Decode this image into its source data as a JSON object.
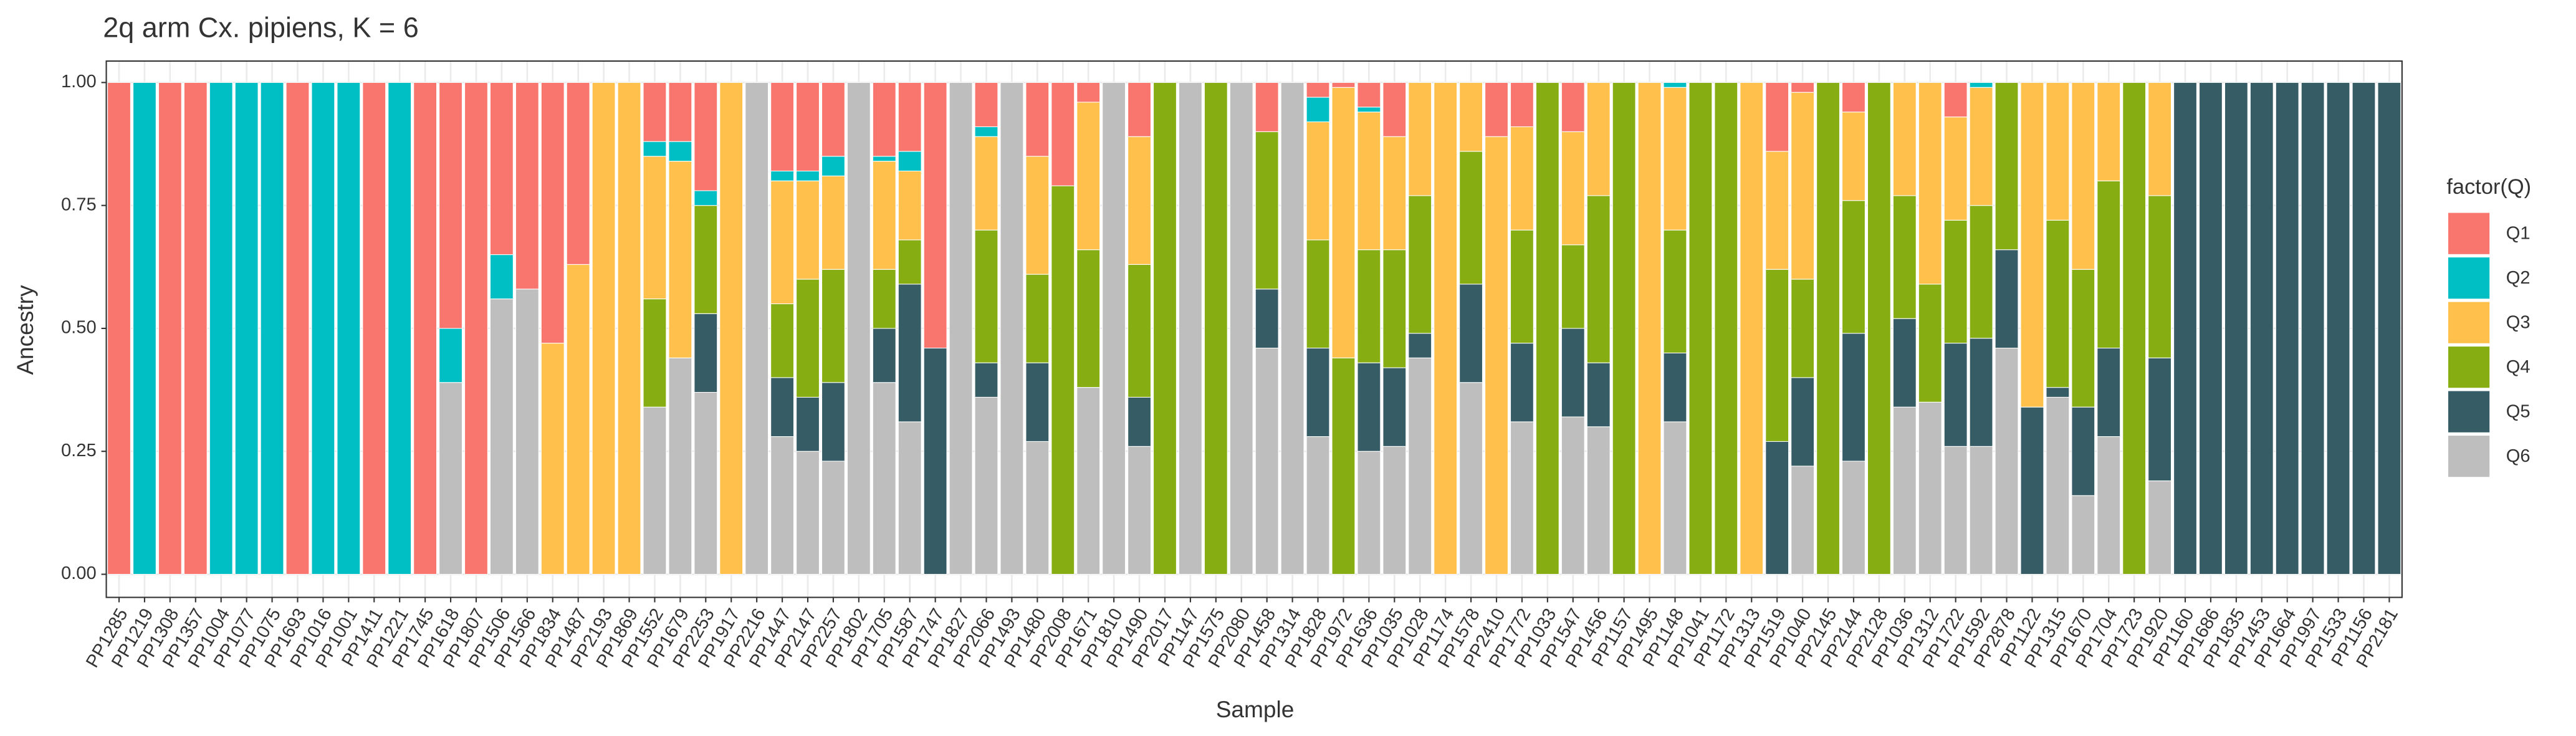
{
  "chart_data": {
    "type": "stacked_bar",
    "title": "2q arm Cx. pipiens, K = 6",
    "x_label": "Sample",
    "y_label": "Ancestry",
    "legend_title": "factor(Q)",
    "legend_position": "right",
    "grid": true,
    "categories": [
      "PP1285",
      "PP1219",
      "PP1308",
      "PP1357",
      "PP1004",
      "PP1077",
      "PP1075",
      "PP1693",
      "PP1016",
      "PP1001",
      "PP1411",
      "PP1221",
      "PP1745",
      "PP1618",
      "PP1807",
      "PP1506",
      "PP1566",
      "PP1834",
      "PP1487",
      "PP2193",
      "PP1869",
      "PP1552",
      "PP1679",
      "PP2253",
      "PP1917",
      "PP2216",
      "PP1447",
      "PP2147",
      "PP2257",
      "PP1802",
      "PP1705",
      "PP1587",
      "PP1747",
      "PP1827",
      "PP2066",
      "PP1493",
      "PP1480",
      "PP2008",
      "PP1671",
      "PP1810",
      "PP1490",
      "PP2017",
      "PP1147",
      "PP1575",
      "PP2080",
      "PP1458",
      "PP1314",
      "PP1828",
      "PP1972",
      "PP1636",
      "PP1035",
      "PP1028",
      "PP1174",
      "PP1578",
      "PP2410",
      "PP1772",
      "PP1033",
      "PP1547",
      "PP1456",
      "PP1157",
      "PP1495",
      "PP1148",
      "PP1041",
      "PP1172",
      "PP1313",
      "PP1519",
      "PP1040",
      "PP2145",
      "PP2144",
      "PP2128",
      "PP1036",
      "PP1312",
      "PP1722",
      "PP1592",
      "PP2878",
      "PP1122",
      "PP1315",
      "PP1670",
      "PP1704",
      "PP1723",
      "PP1920",
      "PP1160",
      "PP1686",
      "PP1835",
      "PP1453",
      "PP1664",
      "PP1997",
      "PP1533",
      "PP1156",
      "PP2181"
    ],
    "ylim": [
      0,
      1
    ],
    "yticks": [
      {
        "value": 0,
        "label": "0.00"
      },
      {
        "value": 0.25,
        "label": "0.25"
      },
      {
        "value": 0.5,
        "label": "0.50"
      },
      {
        "value": 0.75,
        "label": "0.75"
      },
      {
        "value": 1,
        "label": "1.00"
      }
    ],
    "series": [
      {
        "name": "Q1",
        "color": "#F8766D",
        "values": [
          1,
          0,
          1,
          1,
          0,
          0,
          0,
          1,
          0,
          0,
          1,
          0,
          1,
          0.5,
          1,
          0.35,
          0.42,
          0.53,
          0.37,
          0,
          0,
          0.12,
          0.12,
          0.22,
          0,
          0,
          0.18,
          0.18,
          0.15,
          0,
          0.15,
          0.14,
          0.54,
          0,
          0.09,
          0,
          0.15,
          0.21,
          0.04,
          0,
          0.11,
          0,
          0,
          0,
          0,
          0.1,
          0,
          0.03,
          0.01,
          0.05,
          0.11,
          0,
          0,
          0,
          0.11,
          0.09,
          0,
          0.1,
          0,
          0,
          0,
          0,
          0,
          0,
          0,
          0.14,
          0.02,
          0,
          0.06,
          0,
          0,
          0,
          0.07,
          0,
          0,
          0,
          0,
          0,
          0,
          0,
          0,
          0,
          0,
          0,
          0,
          0,
          0,
          0,
          0,
          0
        ]
      },
      {
        "name": "Q2",
        "color": "#00BFC4",
        "values": [
          0,
          1,
          0,
          0,
          1,
          1,
          1,
          0,
          1,
          1,
          0,
          1,
          0,
          0.11,
          0,
          0.09,
          0,
          0,
          0,
          0,
          0,
          0.03,
          0.04,
          0.03,
          0,
          0,
          0.02,
          0.02,
          0.04,
          0,
          0.01,
          0.04,
          0,
          0,
          0.02,
          0,
          0,
          0,
          0,
          0,
          0,
          0,
          0,
          0,
          0,
          0,
          0,
          0.05,
          0,
          0.01,
          0,
          0,
          0,
          0,
          0,
          0,
          0,
          0,
          0,
          0,
          0,
          0.01,
          0,
          0,
          0,
          0,
          0,
          0,
          0,
          0,
          0,
          0,
          0,
          0.01,
          0,
          0,
          0,
          0,
          0,
          0,
          0,
          0,
          0,
          0,
          0,
          0,
          0,
          0,
          0,
          0
        ]
      },
      {
        "name": "Q3",
        "color": "#FFC04C",
        "values": [
          0,
          0,
          0,
          0,
          0,
          0,
          0,
          0,
          0,
          0,
          0,
          0,
          0,
          0,
          0,
          0,
          0,
          0.47,
          0.63,
          1,
          1,
          0.29,
          0.4,
          0,
          1,
          0,
          0.25,
          0.2,
          0.19,
          0,
          0.22,
          0.14,
          0,
          0,
          0.19,
          0,
          0.24,
          0,
          0.3,
          0,
          0.26,
          0,
          0,
          0,
          0,
          0,
          0,
          0.24,
          0.55,
          0.28,
          0.23,
          0.23,
          1,
          0.14,
          0.89,
          0.21,
          0,
          0.23,
          0.23,
          0,
          1,
          0.29,
          0,
          0,
          1,
          0.24,
          0.38,
          0,
          0.18,
          0,
          0.23,
          0.41,
          0.21,
          0.24,
          0,
          0.66,
          0.28,
          0.38,
          0.2,
          0,
          0.23,
          0,
          0,
          0,
          0,
          0,
          0,
          0,
          0,
          0
        ]
      },
      {
        "name": "Q4",
        "color": "#86AE12",
        "values": [
          0,
          0,
          0,
          0,
          0,
          0,
          0,
          0,
          0,
          0,
          0,
          0,
          0,
          0,
          0,
          0,
          0,
          0,
          0,
          0,
          0,
          0.22,
          0,
          0.22,
          0,
          0,
          0.15,
          0.24,
          0.23,
          0,
          0.12,
          0.09,
          0,
          0,
          0.27,
          0,
          0.18,
          0.79,
          0.28,
          0,
          0.27,
          1,
          0,
          1,
          0,
          0.32,
          0,
          0.22,
          0.44,
          0.23,
          0.24,
          0.28,
          0,
          0.27,
          0,
          0.23,
          1,
          0.17,
          0.34,
          1,
          0,
          0.25,
          1,
          1,
          0,
          0.35,
          0.2,
          1,
          0.27,
          1,
          0.25,
          0.24,
          0.25,
          0.27,
          0.34,
          0,
          0.34,
          0.28,
          0.34,
          1,
          0.33,
          0,
          0,
          0,
          0,
          0,
          0,
          0,
          0,
          0
        ]
      },
      {
        "name": "Q5",
        "color": "#365C66",
        "values": [
          0,
          0,
          0,
          0,
          0,
          0,
          0,
          0,
          0,
          0,
          0,
          0,
          0,
          0,
          0,
          0,
          0,
          0,
          0,
          0,
          0,
          0,
          0,
          0.16,
          0,
          0,
          0.12,
          0.11,
          0.16,
          0,
          0.11,
          0.28,
          0.46,
          0,
          0.07,
          0,
          0.16,
          0,
          0,
          0,
          0.1,
          0,
          0,
          0,
          0,
          0.12,
          0,
          0.18,
          0,
          0.18,
          0.16,
          0.05,
          0,
          0.2,
          0,
          0.16,
          0,
          0.18,
          0.13,
          0,
          0,
          0.14,
          0,
          0,
          0,
          0.27,
          0.18,
          0,
          0.26,
          0,
          0.18,
          0,
          0.21,
          0.22,
          0.2,
          0.34,
          0.02,
          0.18,
          0.18,
          0,
          0.25,
          1,
          1,
          1,
          1,
          1,
          1,
          1,
          1,
          1
        ]
      },
      {
        "name": "Q6",
        "color": "#BEBEBE",
        "values": [
          0,
          0,
          0,
          0,
          0,
          0,
          0,
          0,
          0,
          0,
          0,
          0,
          0,
          0.39,
          0,
          0.56,
          0.58,
          0,
          0,
          0,
          0,
          0.34,
          0.44,
          0.37,
          0,
          1,
          0.28,
          0.25,
          0.23,
          1,
          0.39,
          0.31,
          0,
          1,
          0.36,
          1,
          0.27,
          0,
          0.38,
          1,
          0.26,
          0,
          1,
          0,
          1,
          0.46,
          1,
          0.28,
          0,
          0.25,
          0.26,
          0.44,
          0,
          0.39,
          0,
          0.31,
          0,
          0.32,
          0.3,
          0,
          0,
          0.31,
          0,
          0,
          0,
          0,
          0.22,
          0,
          0.23,
          0,
          0.34,
          0.35,
          0.26,
          0.26,
          0.46,
          0,
          0.36,
          0.16,
          0.28,
          0,
          0.19,
          0,
          0,
          0,
          0,
          0,
          0,
          0,
          0,
          0
        ]
      }
    ]
  }
}
